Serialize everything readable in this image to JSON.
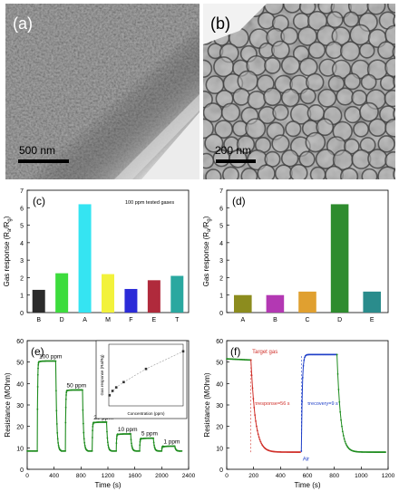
{
  "figure": {
    "panels": {
      "a": {
        "label": "(a)",
        "scalebar": "500 nm"
      },
      "b": {
        "label": "(b)",
        "scalebar": "200 nm"
      },
      "c": {
        "label": "(c)",
        "note": "100 ppm tested gases"
      },
      "d": {
        "label": "(d)"
      },
      "e": {
        "label": "(e)"
      },
      "f": {
        "label": "(f)"
      }
    }
  },
  "chart_data": [
    {
      "id": "c",
      "type": "bar",
      "ylabel": "Gas response (Ra/Rg)",
      "ylim": [
        0,
        7
      ],
      "yticks": [
        0,
        1,
        2,
        3,
        4,
        5,
        6,
        7
      ],
      "categories": [
        "B",
        "D",
        "A",
        "M",
        "F",
        "E",
        "T"
      ],
      "values": [
        1.3,
        2.25,
        6.2,
        2.2,
        1.35,
        1.85,
        2.1
      ],
      "colors": [
        "#2b2b2b",
        "#3ddc3d",
        "#35e4f2",
        "#f2f23c",
        "#2b2bd8",
        "#b02a3c",
        "#2aa8a0"
      ],
      "annotation": "100 ppm tested gases"
    },
    {
      "id": "d",
      "type": "bar",
      "ylabel": "Gas response (Ra/Rg)",
      "ylim": [
        0,
        7
      ],
      "yticks": [
        0,
        1,
        2,
        3,
        4,
        5,
        6,
        7
      ],
      "categories": [
        "A",
        "B",
        "C",
        "D",
        "E"
      ],
      "values": [
        1.0,
        1.0,
        1.2,
        6.2,
        1.2
      ],
      "colors": [
        "#8c8c1e",
        "#b338b3",
        "#e0a030",
        "#2e8c2e",
        "#2a8c8c"
      ]
    },
    {
      "id": "e",
      "type": "line",
      "xlabel": "Time (s)",
      "ylabel": "Resistance (MOhm)",
      "xlim": [
        0,
        2400
      ],
      "ylim": [
        0,
        60
      ],
      "xticks": [
        0,
        400,
        800,
        1200,
        1600,
        2000,
        2400
      ],
      "yticks": [
        0,
        10,
        20,
        30,
        40,
        50,
        60
      ],
      "baseline": 8.5,
      "pulses": [
        {
          "label": "100 ppm",
          "start": 150,
          "end": 420,
          "level": 50.5
        },
        {
          "label": "50 ppm",
          "start": 560,
          "end": 820,
          "level": 37
        },
        {
          "label": "20 ppm",
          "start": 960,
          "end": 1180,
          "level": 22
        },
        {
          "label": "10 ppm",
          "start": 1320,
          "end": 1530,
          "level": 16.5
        },
        {
          "label": "5 ppm",
          "start": 1670,
          "end": 1870,
          "level": 14.5
        },
        {
          "label": "1 ppm",
          "start": 2000,
          "end": 2190,
          "level": 10.8
        }
      ],
      "color": "#1e8c1e",
      "inset": {
        "type": "scatter",
        "xlabel": "Concentration (ppm)",
        "ylabel": "Gas response (Ra/Rg)",
        "xlim": [
          0,
          100
        ],
        "ylim": [
          0,
          7
        ],
        "x": [
          1,
          5,
          10,
          20,
          50,
          100
        ],
        "y": [
          1.2,
          1.7,
          2.1,
          2.7,
          4.2,
          6.2
        ]
      }
    },
    {
      "id": "f",
      "type": "line",
      "xlabel": "Time (s)",
      "ylabel": "Resistance (MOhm)",
      "xlim": [
        0,
        1200
      ],
      "ylim": [
        0,
        60
      ],
      "xticks": [
        0,
        200,
        400,
        600,
        800,
        1000,
        1200
      ],
      "yticks": [
        0,
        10,
        20,
        30,
        40,
        50,
        60
      ],
      "annotations": [
        "Target gas",
        "τresponse=56 s",
        "Air",
        "τrecovery=9 s"
      ],
      "colors": {
        "baseline": "#1e8c1e",
        "response": "#d0302a",
        "recovery": "#2040c8"
      }
    }
  ]
}
